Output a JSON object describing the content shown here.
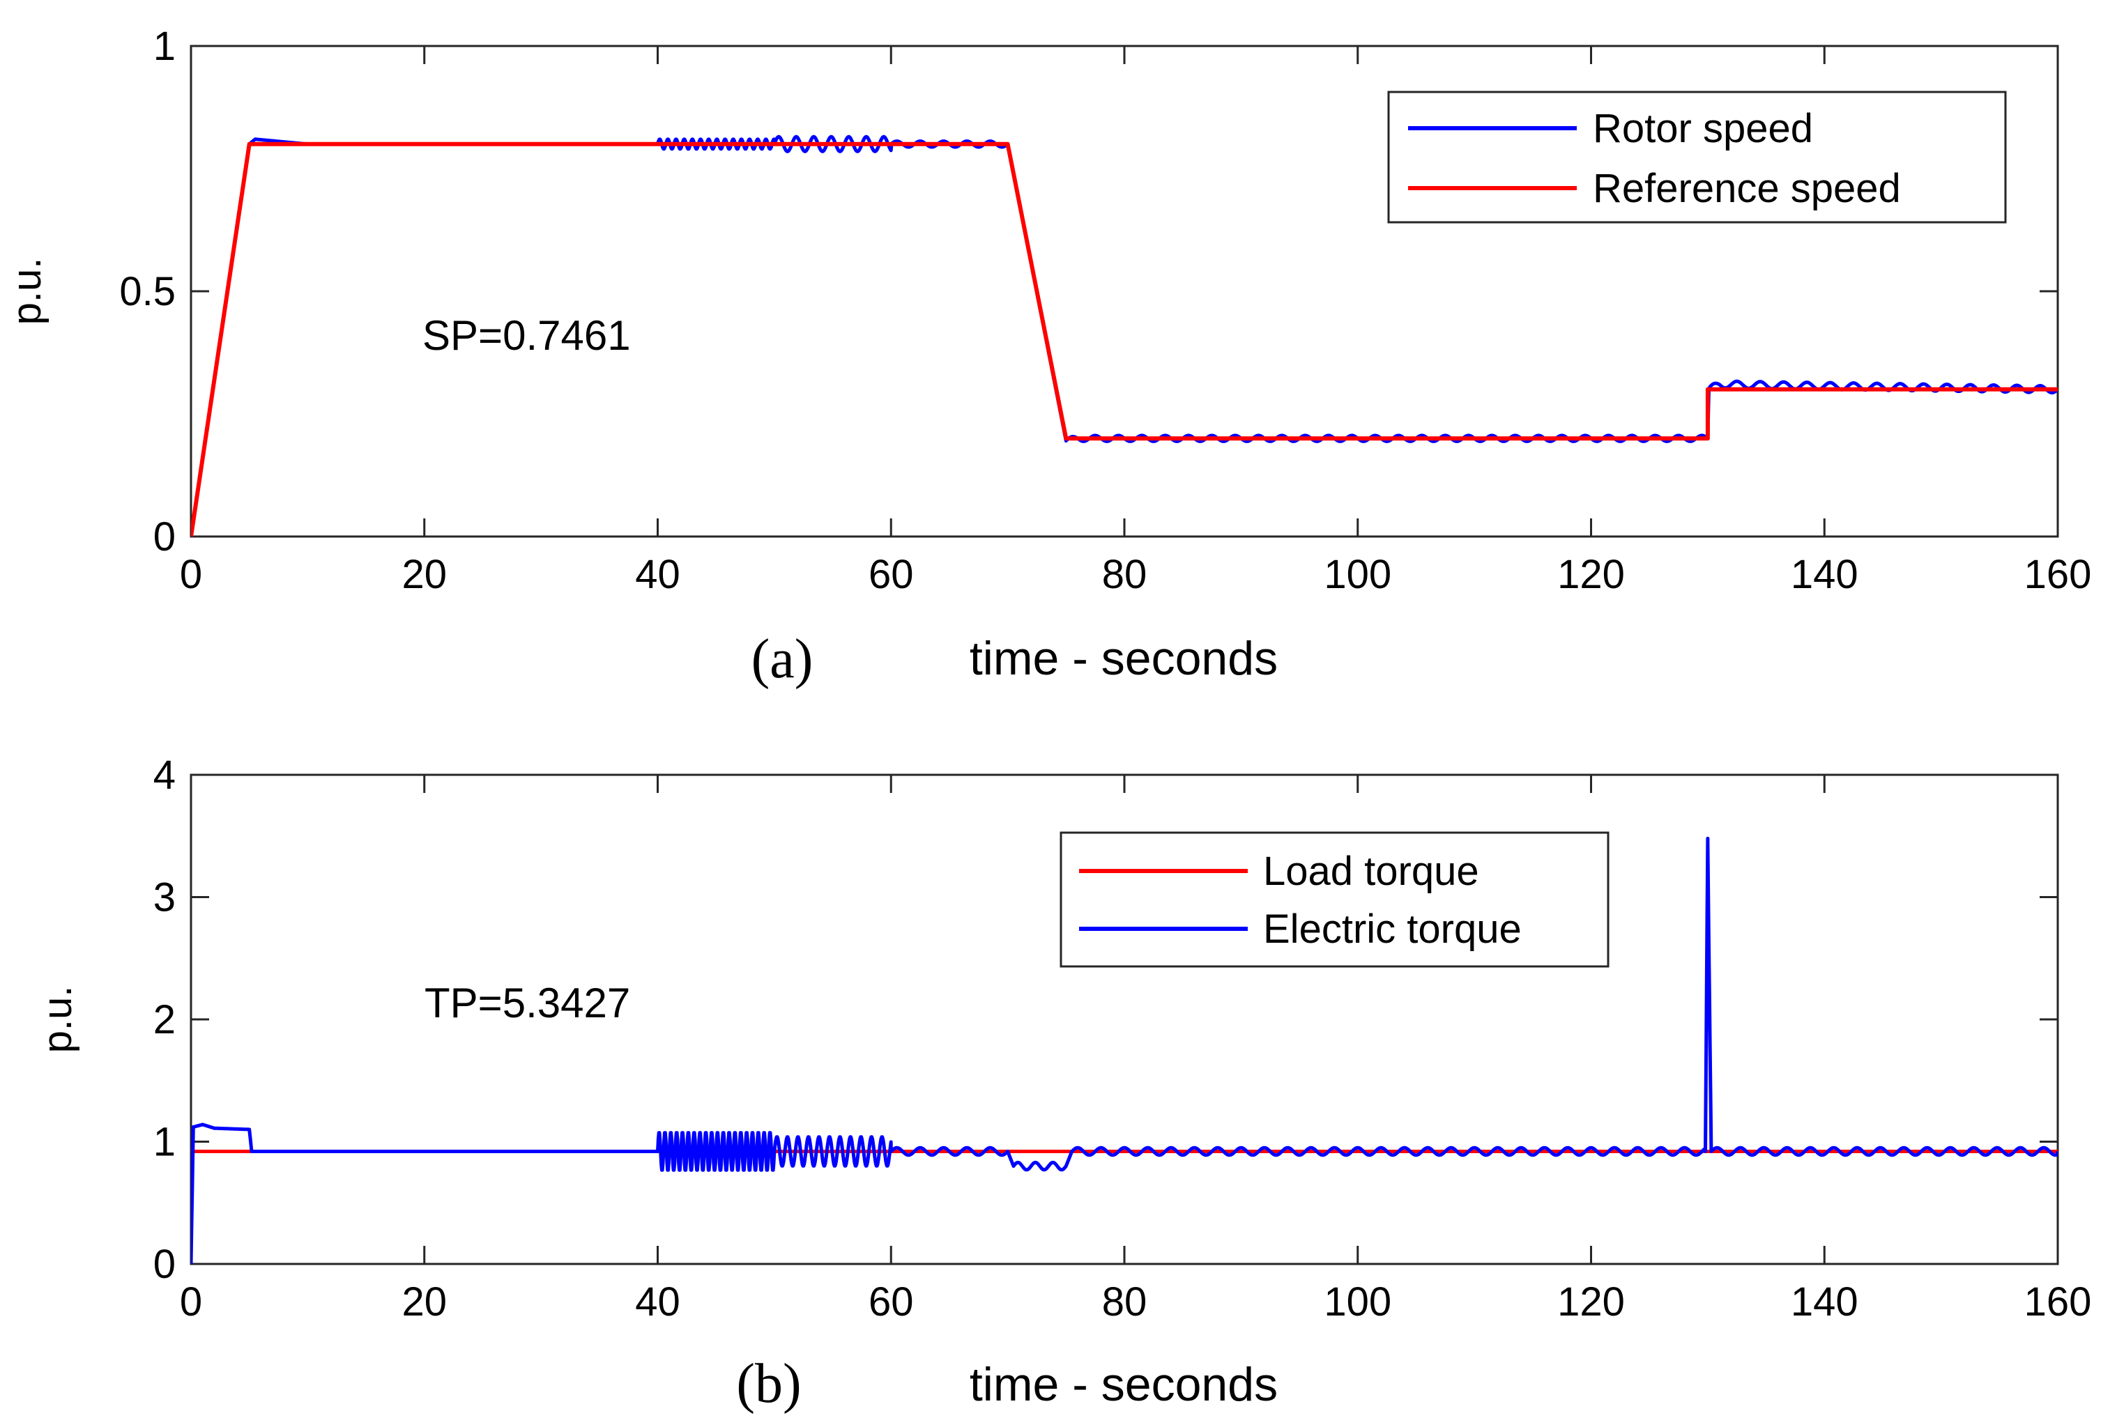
{
  "chart_data": [
    {
      "type": "line",
      "panel_label": "(a)",
      "xlabel": "time - seconds",
      "ylabel": "p.u.",
      "xlim": [
        0,
        160
      ],
      "ylim": [
        0,
        1
      ],
      "xticks": [
        0,
        20,
        40,
        60,
        80,
        100,
        120,
        140,
        160
      ],
      "yticks": [
        0,
        0.5,
        1
      ],
      "xtick_labels": [
        "0",
        "20",
        "40",
        "60",
        "80",
        "100",
        "120",
        "140",
        "160"
      ],
      "ytick_labels": [
        "0",
        "0.5",
        "1"
      ],
      "grid": false,
      "legend_position": "top-right",
      "annotation": "SP=0.7461",
      "series": [
        {
          "name": "Rotor speed",
          "color": "#0000ff",
          "points": [
            [
              0,
              0
            ],
            [
              5,
              0.8
            ],
            [
              5.5,
              0.81
            ],
            [
              10,
              0.8
            ],
            [
              40,
              0.8
            ],
            [
              70,
              0.8
            ],
            [
              75,
              0.195
            ],
            [
              76,
              0.2
            ],
            [
              130,
              0.2
            ],
            [
              130.1,
              0.3
            ],
            [
              131,
              0.31
            ],
            [
              160,
              0.3
            ]
          ],
          "ripple": [
            {
              "x": [
                40,
                50
              ],
              "amp": 0.01,
              "period": 0.7
            },
            {
              "x": [
                50,
                60
              ],
              "amp": 0.015,
              "period": 1.5
            },
            {
              "x": [
                60,
                70
              ],
              "amp": 0.006,
              "period": 2.0
            },
            {
              "x": [
                75,
                130
              ],
              "amp": 0.006,
              "period": 2.0
            },
            {
              "x": [
                130,
                160
              ],
              "amp": 0.007,
              "period": 2.0
            }
          ]
        },
        {
          "name": "Reference speed",
          "color": "#ff0000",
          "points": [
            [
              0,
              0
            ],
            [
              5,
              0.8
            ],
            [
              70,
              0.8
            ],
            [
              75,
              0.2
            ],
            [
              130,
              0.2
            ],
            [
              130,
              0.3
            ],
            [
              160,
              0.3
            ]
          ]
        }
      ]
    },
    {
      "type": "line",
      "panel_label": "(b)",
      "xlabel": "time - seconds",
      "ylabel": "p.u.",
      "xlim": [
        0,
        160
      ],
      "ylim": [
        0,
        4
      ],
      "xticks": [
        0,
        20,
        40,
        60,
        80,
        100,
        120,
        140,
        160
      ],
      "yticks": [
        0,
        1,
        2,
        3,
        4
      ],
      "xtick_labels": [
        "0",
        "20",
        "40",
        "60",
        "80",
        "100",
        "120",
        "140",
        "160"
      ],
      "ytick_labels": [
        "0",
        "1",
        "2",
        "3",
        "4"
      ],
      "grid": false,
      "legend_position": "top-right",
      "annotation": "TP=5.3427",
      "series": [
        {
          "name": "Load torque",
          "color": "#ff0000",
          "points": [
            [
              0,
              0.92
            ],
            [
              160,
              0.92
            ]
          ]
        },
        {
          "name": "Electric torque",
          "color": "#0000ff",
          "points": [
            [
              0,
              0
            ],
            [
              0.2,
              1.12
            ],
            [
              1,
              1.14
            ],
            [
              2,
              1.11
            ],
            [
              5,
              1.1
            ],
            [
              5.2,
              0.92
            ],
            [
              6,
              0.92
            ],
            [
              40,
              0.92
            ],
            [
              60,
              0.92
            ],
            [
              70,
              0.92
            ],
            [
              70.5,
              0.8
            ],
            [
              75,
              0.8
            ],
            [
              75.5,
              0.92
            ],
            [
              129.8,
              0.92
            ],
            [
              130,
              3.45
            ],
            [
              130.3,
              0.92
            ],
            [
              160,
              0.92
            ]
          ],
          "ripple": [
            {
              "x": [
                40,
                50
              ],
              "amp": 0.16,
              "period": 0.5
            },
            {
              "x": [
                50,
                60
              ],
              "amp": 0.12,
              "period": 0.9
            },
            {
              "x": [
                60,
                70
              ],
              "amp": 0.03,
              "period": 2.0
            },
            {
              "x": [
                70.5,
                75
              ],
              "amp": 0.03,
              "period": 1.5
            },
            {
              "x": [
                75.5,
                130
              ],
              "amp": 0.03,
              "period": 2.0
            },
            {
              "x": [
                130.3,
                160
              ],
              "amp": 0.03,
              "period": 2.0
            }
          ]
        }
      ]
    }
  ]
}
